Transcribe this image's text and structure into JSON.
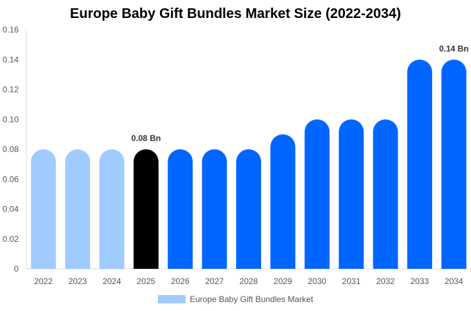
{
  "chart_data": {
    "type": "bar",
    "title": "Europe Baby Gift Bundles Market Size (2022-2034)",
    "categories": [
      "2022",
      "2023",
      "2024",
      "2025",
      "2026",
      "2027",
      "2028",
      "2029",
      "2030",
      "2031",
      "2032",
      "2033",
      "2034"
    ],
    "series": [
      {
        "name": "Europe Baby Gift Bundles Market",
        "values": [
          0.08,
          0.08,
          0.08,
          0.08,
          0.08,
          0.08,
          0.08,
          0.09,
          0.1,
          0.1,
          0.1,
          0.14,
          0.14
        ]
      }
    ],
    "bar_colors": [
      "#a0cbff",
      "#a0cbff",
      "#a0cbff",
      "#000000",
      "#0066ff",
      "#0066ff",
      "#0066ff",
      "#0066ff",
      "#0066ff",
      "#0066ff",
      "#0066ff",
      "#0066ff",
      "#0066ff"
    ],
    "data_labels": [
      {
        "category": "2025",
        "text": "0.08 Bn"
      },
      {
        "category": "2034",
        "text": "0.14 Bn"
      }
    ],
    "yticks": [
      "0",
      "0.02",
      "0.04",
      "0.06",
      "0.08",
      "0.10",
      "0.12",
      "0.14",
      "0.16"
    ],
    "ylim": [
      0,
      0.16
    ],
    "xlabel": "",
    "ylabel": "",
    "grid": false,
    "legend_position": "bottom"
  }
}
